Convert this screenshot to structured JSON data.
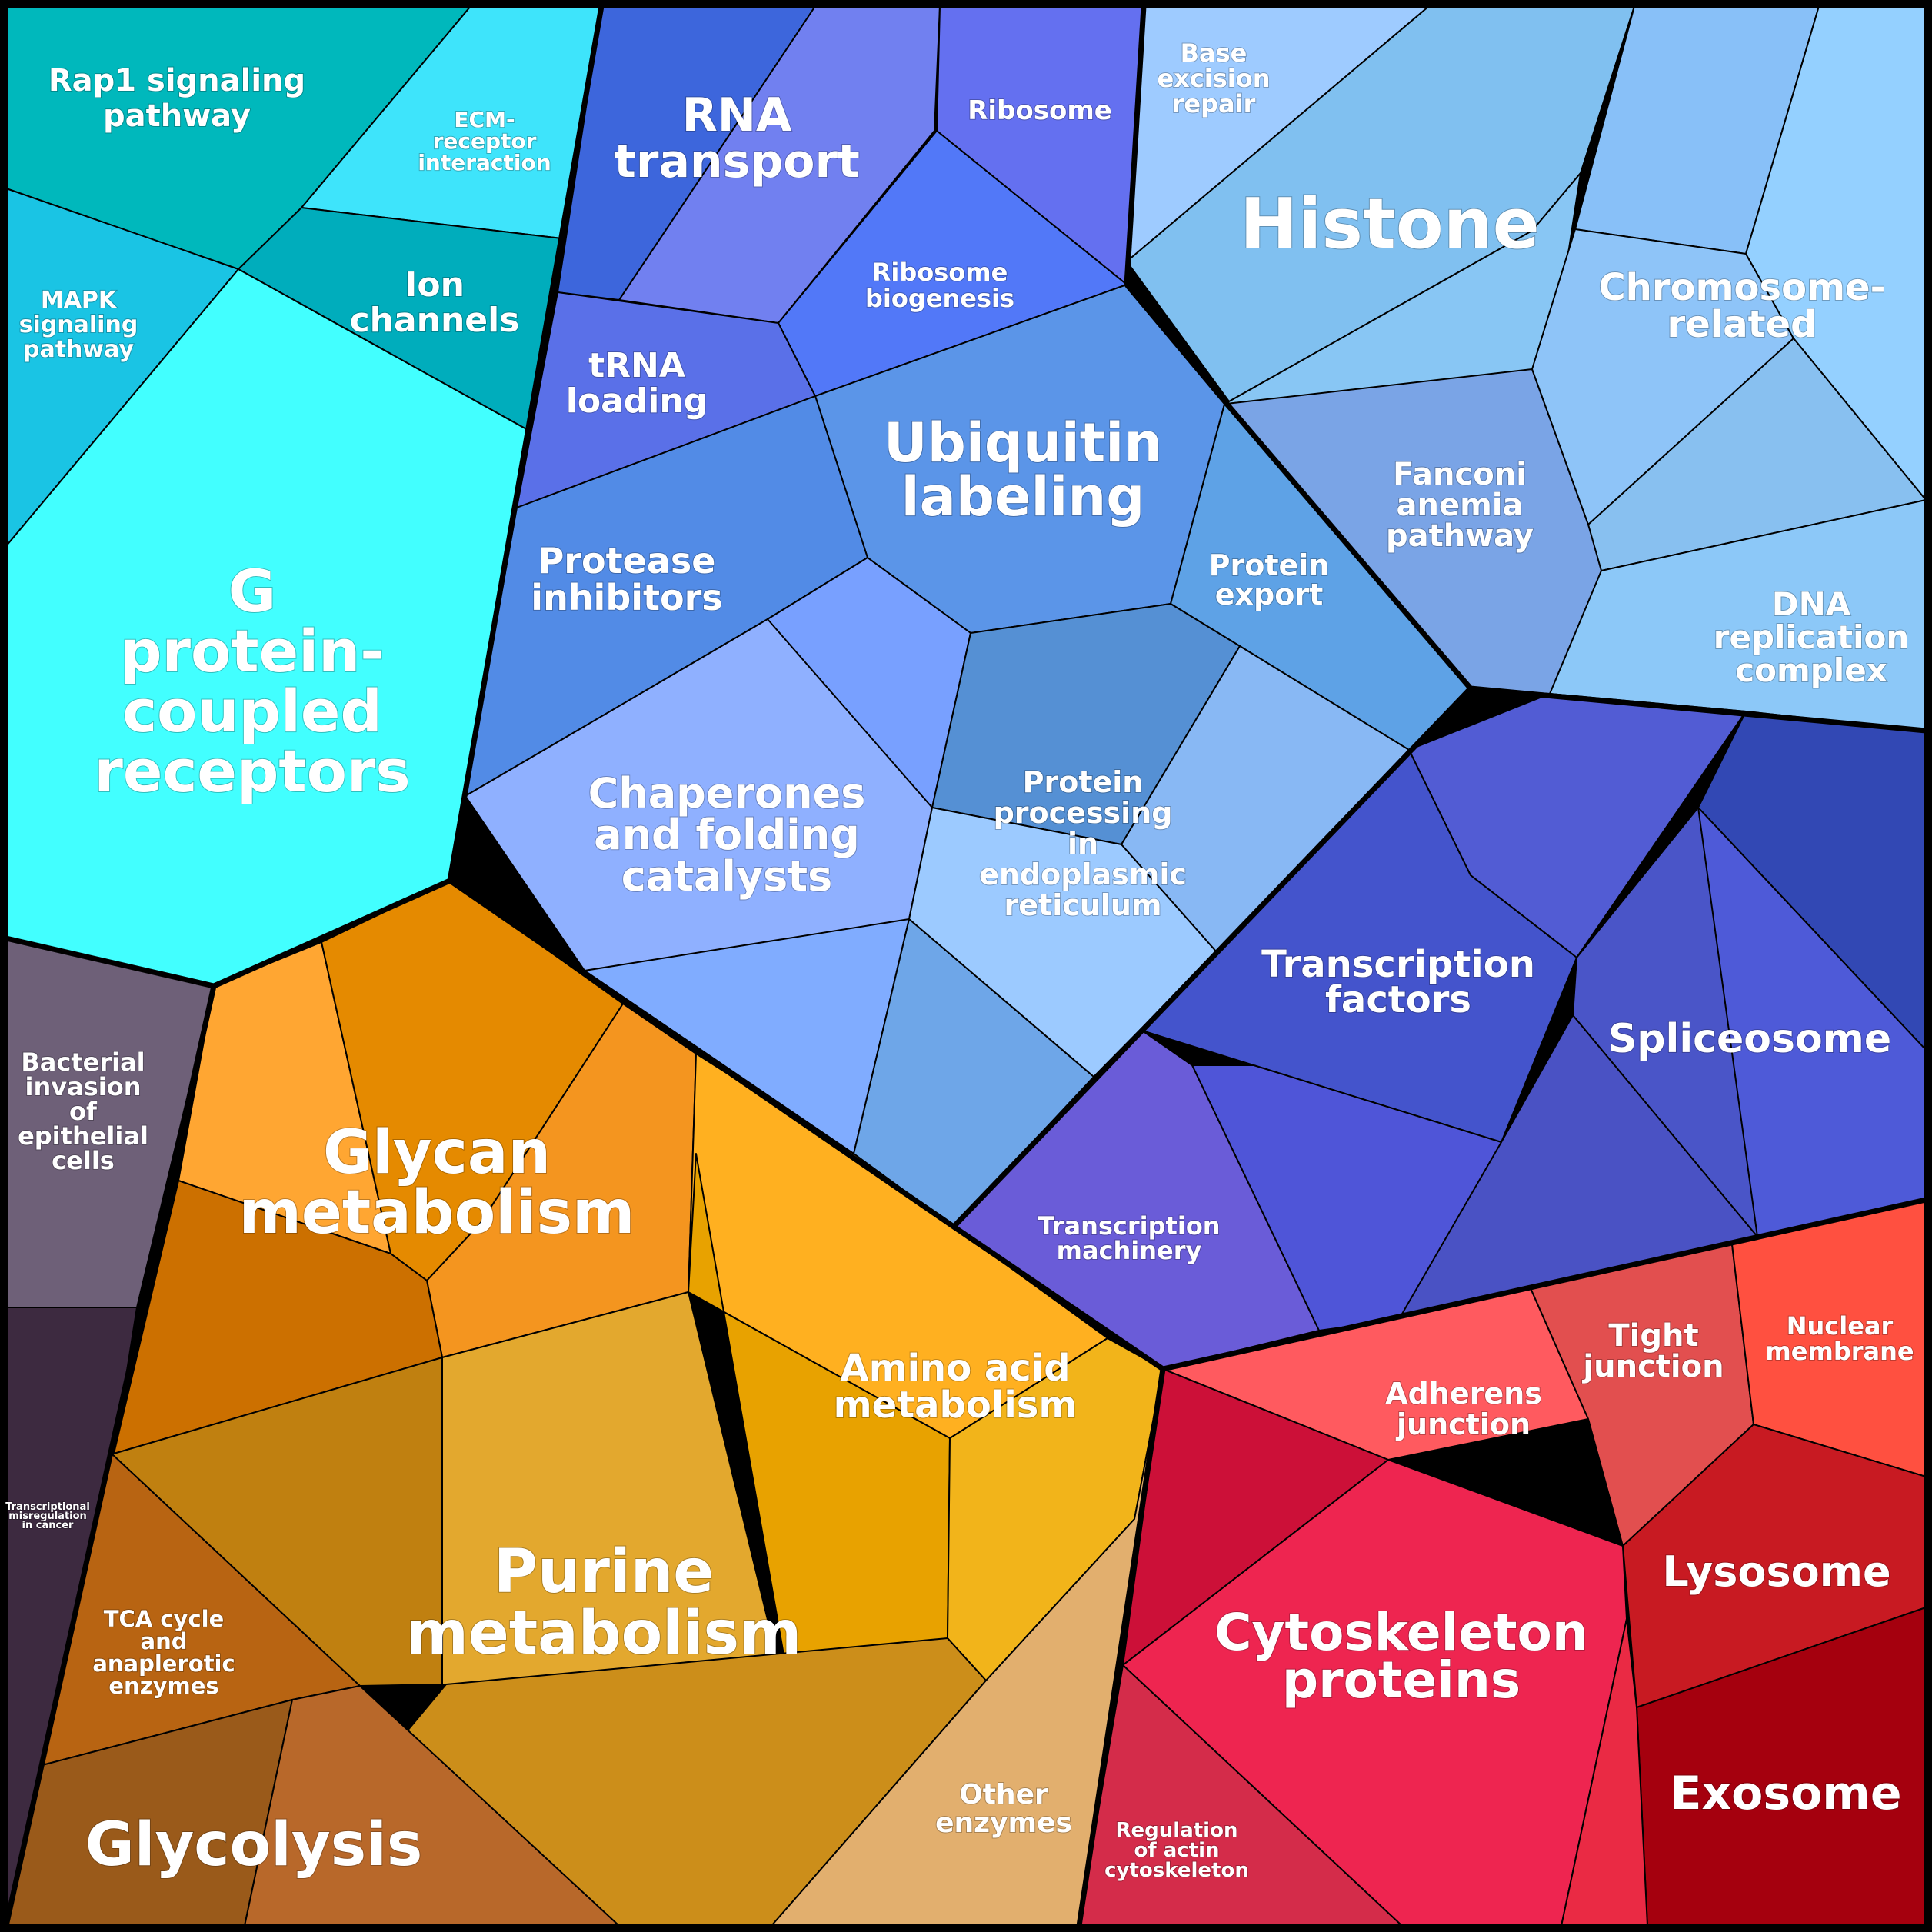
{
  "colors": {
    "border": "#000000",
    "label": "#ffffff",
    "teal": "#00b9bf",
    "cyan_bright": "#40ffff",
    "blue": "#4f8be0",
    "light_blue": "#80c0f0",
    "indigo": "#4b55c8",
    "orange": "#e58a00",
    "gold": "#e5a92e",
    "red": "#ee2550",
    "purple_gray": "#6e6078",
    "dark_plum": "#3d2a40"
  },
  "regions": [
    {
      "id": "rap1",
      "name": "Rap1 signaling pathway",
      "lines": [
        "Rap1 signaling",
        "pathway"
      ],
      "color": "#00b8bc"
    },
    {
      "id": "ecm",
      "name": "ECM-receptor interaction",
      "lines": [
        "ECM-",
        "receptor",
        "interaction"
      ],
      "color": "#3ee4fb"
    },
    {
      "id": "mapk",
      "name": "MAPK signaling pathway",
      "lines": [
        "MAPK",
        "signaling",
        "pathway"
      ],
      "color": "#1ac4e4"
    },
    {
      "id": "ion",
      "name": "Ion channels",
      "lines": [
        "Ion",
        "channels"
      ],
      "color": "#00adbc"
    },
    {
      "id": "gpcr",
      "name": "G protein-coupled receptors",
      "lines": [
        "G",
        "protein-",
        "coupled",
        "receptors"
      ],
      "color": "#42ffff"
    },
    {
      "id": "rna",
      "name": "RNA transport",
      "lines": [
        "RNA",
        "transport"
      ],
      "color": "#7180f0"
    },
    {
      "id": "ribosome",
      "name": "Ribosome",
      "lines": [
        "Ribosome"
      ],
      "color": "#6470f0"
    },
    {
      "id": "ribobio",
      "name": "Ribosome biogenesis",
      "lines": [
        "Ribosome",
        "biogenesis"
      ],
      "color": "#5278f8"
    },
    {
      "id": "trna",
      "name": "tRNA loading",
      "lines": [
        "tRNA",
        "loading"
      ],
      "color": "#5a70e8"
    },
    {
      "id": "ubiq",
      "name": "Ubiquitin labeling",
      "lines": [
        "Ubiquitin",
        "labeling"
      ],
      "color": "#5b95e8"
    },
    {
      "id": "protease",
      "name": "Protease inhibitors",
      "lines": [
        "Protease",
        "inhibitors"
      ],
      "color": "#528be6"
    },
    {
      "id": "chaperones",
      "name": "Chaperones and folding catalysts",
      "lines": [
        "Chaperones",
        "and folding",
        "catalysts"
      ],
      "color": "#8fb0ff"
    },
    {
      "id": "protexport",
      "name": "Protein export",
      "lines": [
        "Protein",
        "export"
      ],
      "color": "#5ea2e6"
    },
    {
      "id": "er",
      "name": "Protein processing in endoplasmic reticulum",
      "lines": [
        "Protein",
        "processing",
        "in",
        "endoplasmic",
        "reticulum"
      ],
      "color": "#8cbaf0"
    },
    {
      "id": "ber",
      "name": "Base excision repair",
      "lines": [
        "Base",
        "excision",
        "repair"
      ],
      "color": "#9ecbff"
    },
    {
      "id": "histone",
      "name": "Histone",
      "lines": [
        "Histone"
      ],
      "color": "#80c0f0"
    },
    {
      "id": "chromosome",
      "name": "Chromosome-related",
      "lines": [
        "Chromosome-",
        "related"
      ],
      "color": "#88c0f8"
    },
    {
      "id": "fanconi",
      "name": "Fanconi anemia pathway",
      "lines": [
        "Fanconi",
        "anemia",
        "pathway"
      ],
      "color": "#7aa4e6"
    },
    {
      "id": "dnarep",
      "name": "DNA replication complex",
      "lines": [
        "DNA",
        "replication",
        "complex"
      ],
      "color": "#8cc8f8"
    },
    {
      "id": "tf",
      "name": "Transcription factors",
      "lines": [
        "Transcription",
        "factors"
      ],
      "color": "#4a58d8"
    },
    {
      "id": "splice",
      "name": "Spliceosome",
      "lines": [
        "Spliceosome"
      ],
      "color": "#4a55c8"
    },
    {
      "id": "txmach",
      "name": "Transcription machinery",
      "lines": [
        "Transcription",
        "machinery"
      ],
      "color": "#6a5cd8"
    },
    {
      "id": "bacterial",
      "name": "Bacterial invasion of epithelial cells",
      "lines": [
        "Bacterial",
        "invasion",
        "of",
        "epithelial",
        "cells"
      ],
      "color": "#6e6078"
    },
    {
      "id": "txmis",
      "name": "Transcriptional misregulation in cancer",
      "lines": [
        "Transcriptional",
        "misregulation",
        "in cancer"
      ],
      "color": "#3d2a40"
    },
    {
      "id": "glycan",
      "name": "Glycan metabolism",
      "lines": [
        "Glycan",
        "metabolism"
      ],
      "color": "#e58a00"
    },
    {
      "id": "amino",
      "name": "Amino acid metabolism",
      "lines": [
        "Amino acid",
        "metabolism"
      ],
      "color": "#f2b41a"
    },
    {
      "id": "purine",
      "name": "Purine metabolism",
      "lines": [
        "Purine",
        "metabolism"
      ],
      "color": "#e3a82e"
    },
    {
      "id": "tca",
      "name": "TCA cycle and anaplerotic enzymes",
      "lines": [
        "TCA cycle",
        "and",
        "anaplerotic",
        "enzymes"
      ],
      "color": "#b86412"
    },
    {
      "id": "glycolysis",
      "name": "Glycolysis",
      "lines": [
        "Glycolysis"
      ],
      "color": "#b8682a"
    },
    {
      "id": "other",
      "name": "Other enzymes",
      "lines": [
        "Other",
        "enzymes"
      ],
      "color": "#e2af6e"
    },
    {
      "id": "adherens",
      "name": "Adherens junction",
      "lines": [
        "Adherens",
        "junction"
      ],
      "color": "#ff5a5f"
    },
    {
      "id": "tight",
      "name": "Tight junction",
      "lines": [
        "Tight",
        "junction"
      ],
      "color": "#e24f4f"
    },
    {
      "id": "nuclear",
      "name": "Nuclear membrane",
      "lines": [
        "Nuclear",
        "membrane"
      ],
      "color": "#ff5040"
    },
    {
      "id": "cyto",
      "name": "Cytoskeleton proteins",
      "lines": [
        "Cytoskeleton",
        "proteins"
      ],
      "color": "#ee2550"
    },
    {
      "id": "actin",
      "name": "Regulation of actin cytoskeleton",
      "lines": [
        "Regulation",
        "of actin",
        "cytoskeleton"
      ],
      "color": "#d42c4a"
    },
    {
      "id": "lysosome",
      "name": "Lysosome",
      "lines": [
        "Lysosome"
      ],
      "color": "#c81a22"
    },
    {
      "id": "exosome",
      "name": "Exosome",
      "lines": [
        "Exosome"
      ],
      "color": "#a5000e"
    }
  ]
}
